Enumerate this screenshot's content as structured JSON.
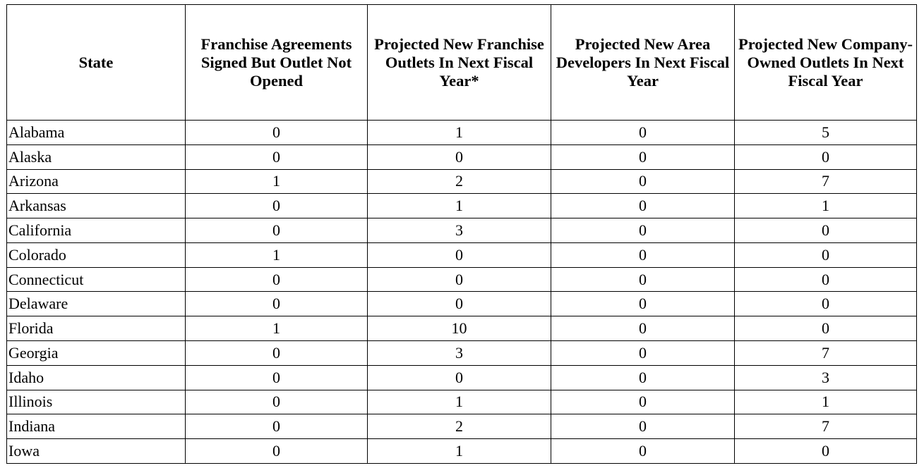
{
  "headers": [
    "State",
    "Franchise Agreements Signed But Outlet Not Opened",
    "Projected New Franchise Outlets In Next Fiscal Year*",
    "Projected New Area Developers In Next Fiscal Year",
    "Projected New Company-Owned Outlets In Next Fiscal Year"
  ],
  "rows": [
    [
      "Alabama",
      "0",
      "1",
      "0",
      "5"
    ],
    [
      "Alaska",
      "0",
      "0",
      "0",
      "0"
    ],
    [
      "Arizona",
      "1",
      "2",
      "0",
      "7"
    ],
    [
      "Arkansas",
      "0",
      "1",
      "0",
      "1"
    ],
    [
      "California",
      "0",
      "3",
      "0",
      "0"
    ],
    [
      "Colorado",
      "1",
      "0",
      "0",
      "0"
    ],
    [
      "Connecticut",
      "0",
      "0",
      "0",
      "0"
    ],
    [
      "Delaware",
      "0",
      "0",
      "0",
      "0"
    ],
    [
      "Florida",
      "1",
      "10",
      "0",
      "0"
    ],
    [
      "Georgia",
      "0",
      "3",
      "0",
      "7"
    ],
    [
      "Idaho",
      "0",
      "0",
      "0",
      "3"
    ],
    [
      "Illinois",
      "0",
      "1",
      "0",
      "1"
    ],
    [
      "Indiana",
      "0",
      "2",
      "0",
      "7"
    ],
    [
      "Iowa",
      "0",
      "1",
      "0",
      "0"
    ]
  ]
}
